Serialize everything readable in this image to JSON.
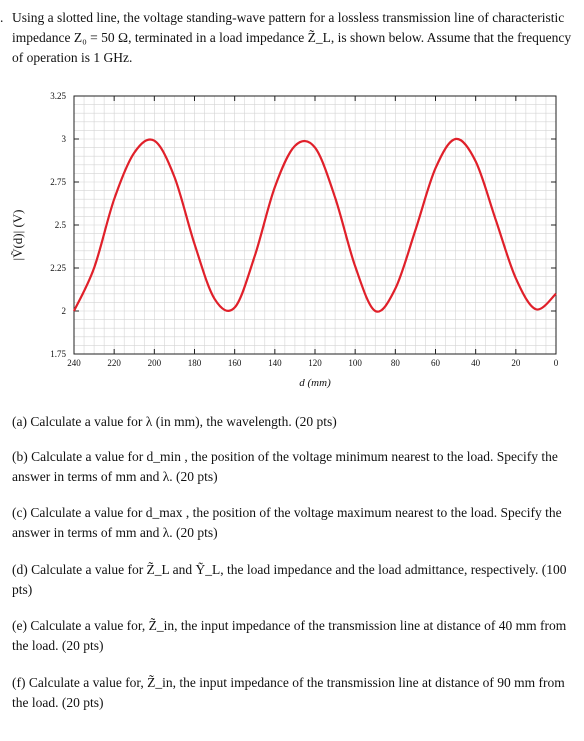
{
  "intro": {
    "bullet": ".",
    "text": "Using a slotted line, the voltage standing-wave pattern for a lossless transmission line of characteristic impedance Z₀ = 50 Ω, terminated in a load impedance Z̃_L, is shown below. Assume that the frequency of operation is 1 GHz."
  },
  "chart_data": {
    "type": "line",
    "xlabel": "d (mm)",
    "ylabel": "|Ṽ(d)| (V)",
    "xlim": [
      240,
      0
    ],
    "ylim": [
      1.75,
      3.25
    ],
    "x_ticks": [
      240,
      220,
      200,
      180,
      160,
      140,
      120,
      100,
      80,
      60,
      40,
      20,
      0
    ],
    "y_ticks": [
      1.75,
      2,
      2.25,
      2.5,
      2.75,
      3,
      3.25
    ],
    "y_tick_labels": [
      "1.75",
      "2",
      "2.25",
      "2.5",
      "2.75",
      "3",
      "3.25"
    ],
    "grid": true,
    "series": [
      {
        "color": "#e0202a",
        "x": [
          240,
          230,
          220,
          210,
          200,
          190,
          180,
          170,
          160,
          150,
          140,
          130,
          120,
          110,
          100,
          90,
          80,
          70,
          60,
          50,
          40,
          30,
          20,
          10,
          0
        ],
        "y": [
          2.0,
          2.25,
          2.65,
          2.92,
          2.99,
          2.78,
          2.39,
          2.07,
          2.02,
          2.32,
          2.72,
          2.96,
          2.95,
          2.66,
          2.26,
          2.0,
          2.13,
          2.47,
          2.83,
          3.0,
          2.87,
          2.53,
          2.19,
          2.01,
          2.1
        ]
      }
    ]
  },
  "questions": [
    {
      "text": "(a) Calculate a value for λ (in mm), the wavelength. (20 pts)"
    },
    {
      "text": "(b) Calculate a value for d_min , the position of the voltage minimum nearest to the load. Specify the answer in terms of mm and λ. (20 pts)"
    },
    {
      "text": "(c) Calculate a value for d_max , the position of the voltage maximum nearest to the load. Specify the answer in terms of mm and λ. (20 pts)"
    },
    {
      "text": "(d) Calculate a value for Z̃_L and Ỹ_L, the load impedance and the load admittance, respectively. (100 pts)"
    },
    {
      "text": "(e) Calculate a value for, Z̃_in, the input impedance of the transmission line at distance of 40 mm from the load. (20 pts)"
    },
    {
      "text": "(f) Calculate a value for, Z̃_in, the input impedance of the transmission line at distance of 90 mm from the load. (20 pts)"
    }
  ]
}
